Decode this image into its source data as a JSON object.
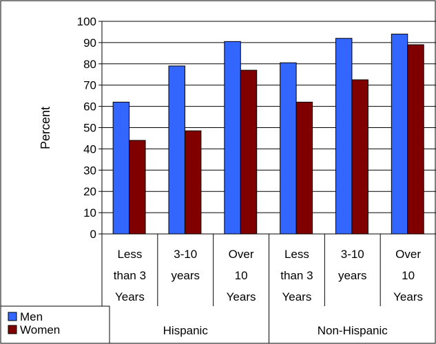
{
  "chart_data": {
    "type": "bar",
    "title": "",
    "xlabel": "",
    "ylabel": "Percent",
    "ylim": [
      0,
      100
    ],
    "yticks": [
      0,
      10,
      20,
      30,
      40,
      50,
      60,
      70,
      80,
      90,
      100
    ],
    "grid": true,
    "legend_position": "bottom-left",
    "groups": [
      {
        "label": "Hispanic",
        "categories": [
          [
            "Less",
            "than 3",
            "Years"
          ],
          [
            "3-10",
            "years"
          ],
          [
            "Over",
            "10",
            "Years"
          ]
        ]
      },
      {
        "label": "Non-Hispanic",
        "categories": [
          [
            "Less",
            "than 3",
            "Years"
          ],
          [
            "3-10",
            "years"
          ],
          [
            "Over",
            "10",
            "Years"
          ]
        ]
      }
    ],
    "series": [
      {
        "name": "Men",
        "color": "#3366FF",
        "values": [
          62,
          79,
          90.5,
          80.5,
          92,
          94
        ]
      },
      {
        "name": "Women",
        "color": "#800000",
        "values": [
          44,
          48.5,
          77,
          62,
          72.5,
          89
        ]
      }
    ]
  }
}
